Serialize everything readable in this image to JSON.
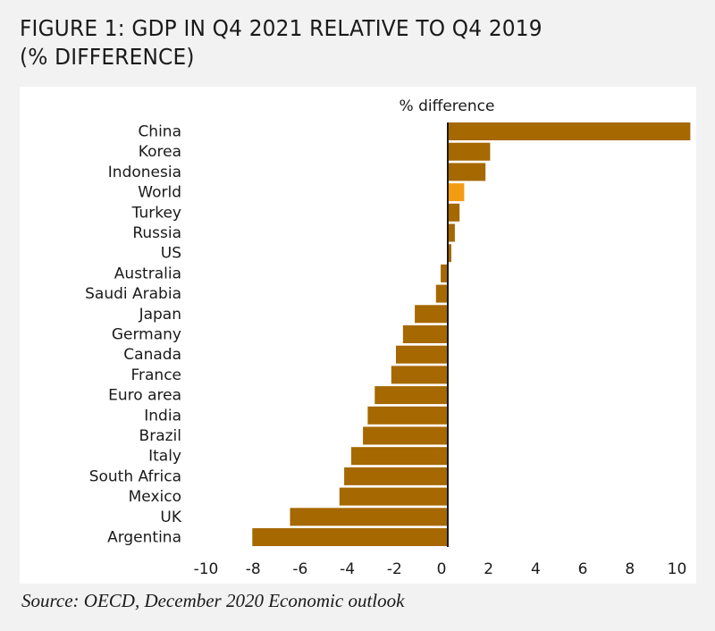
{
  "figure": {
    "title_line1": "FIGURE 1: GDP IN Q4 2021 RELATIVE TO Q4 2019",
    "title_line2": "(% DIFFERENCE)",
    "source": "Source: OECD, December 2020 Economic outlook"
  },
  "colors": {
    "bar": "#a66800",
    "highlight": "#f39c12",
    "axis": "#1a1a1a"
  },
  "chart_data": {
    "type": "bar",
    "orientation": "horizontal",
    "title": "FIGURE 1: GDP IN Q4 2021 RELATIVE TO Q4 2019 (% DIFFERENCE)",
    "xlabel": "% difference",
    "ylabel": "",
    "xlim": [
      -10,
      10
    ],
    "xticks": [
      -10,
      -8,
      -6,
      -4,
      -2,
      0,
      2,
      4,
      6,
      8,
      10
    ],
    "xtick_labels": [
      "-10",
      "-8",
      "-6",
      "-4",
      "-2",
      "0",
      "2",
      "4",
      "6",
      "8",
      "10"
    ],
    "grid": false,
    "legend": "none",
    "highlighted_category": "World",
    "categories": [
      "China",
      "Korea",
      "Indonesia",
      "World",
      "Turkey",
      "Russia",
      "US",
      "Australia",
      "Saudi Arabia",
      "Japan",
      "Germany",
      "Canada",
      "France",
      "Euro area",
      "India",
      "Brazil",
      "Italy",
      "South Africa",
      "Mexico",
      "UK",
      "Argentina"
    ],
    "values": [
      10.3,
      1.8,
      1.6,
      0.7,
      0.5,
      0.3,
      0.15,
      -0.3,
      -0.5,
      -1.4,
      -1.9,
      -2.2,
      -2.4,
      -3.1,
      -3.4,
      -3.6,
      -4.1,
      -4.4,
      -4.6,
      -6.7,
      -8.3
    ]
  }
}
